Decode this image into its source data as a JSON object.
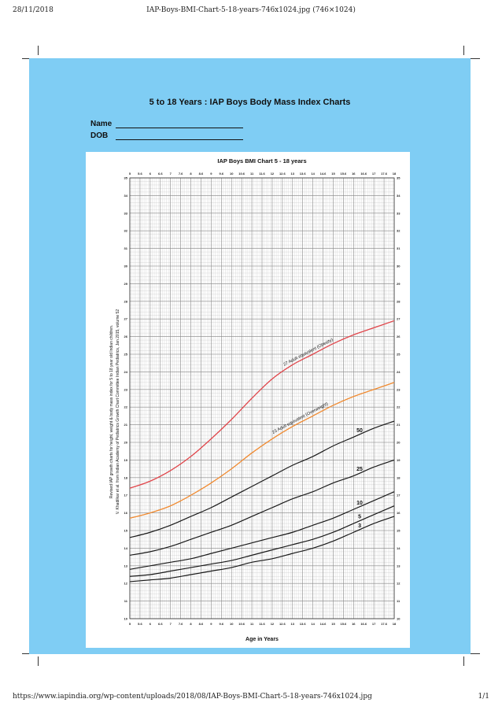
{
  "browser": {
    "date": "28/11/2018",
    "page_title": "IAP-Boys-BMI-Chart-5-18-years-746x1024.jpg (746×1024)",
    "url": "https://www.iapindia.org/wp-content/uploads/2018/08/IAP-Boys-BMI-Chart-5-18-years-746x1024.jpg",
    "page_number": "1/1"
  },
  "sheet": {
    "title": "5 to 18 Years : IAP Boys Body Mass Index Charts",
    "name_label": "Name",
    "dob_label": "DOB"
  },
  "chart_data": {
    "type": "line",
    "title": "IAP Boys BMI Chart 5 - 18 years",
    "xlabel": "Age in Years",
    "ylabel": "",
    "side_note_line1": "Revised IAP growth charts for height, weight & body mass index for 5 to 18 year old Indian children.",
    "side_note_line2": "V. Khadilkar et al. from Indian Academy of Pediatrics Growth Chart Committee Indian Pediatrics, Jan 2015, volume 52",
    "xlim": [
      5,
      18
    ],
    "ylim": [
      10,
      35
    ],
    "x_ticks": [
      "5",
      "5.6",
      "6",
      "6.6",
      "7",
      "7.6",
      "8",
      "8.6",
      "9",
      "9.6",
      "10",
      "10.6",
      "11",
      "11.6",
      "12",
      "12.6",
      "13",
      "13.6",
      "14",
      "14.6",
      "15",
      "15.6",
      "16",
      "16.6",
      "17",
      "17.6",
      "18"
    ],
    "y_ticks": [
      "10",
      "11",
      "12",
      "13",
      "14",
      "15",
      "16",
      "17",
      "18",
      "19",
      "20",
      "21",
      "22",
      "23",
      "24",
      "25",
      "26",
      "27",
      "28",
      "29",
      "30",
      "31",
      "32",
      "33",
      "34",
      "35"
    ],
    "grid": true,
    "x": [
      5,
      6,
      7,
      8,
      9,
      10,
      11,
      12,
      13,
      14,
      15,
      16,
      17,
      18
    ],
    "series": [
      {
        "name": "27 Adult equivalent (Obesity)",
        "color": "#e0454a",
        "values": [
          17.4,
          17.8,
          18.4,
          19.2,
          20.2,
          21.3,
          22.5,
          23.6,
          24.4,
          25.0,
          25.6,
          26.1,
          26.5,
          26.9
        ]
      },
      {
        "name": "23 Adult equivalent (Overweight)",
        "color": "#f08a30",
        "values": [
          15.7,
          16.0,
          16.4,
          17.0,
          17.7,
          18.5,
          19.4,
          20.2,
          20.9,
          21.5,
          22.1,
          22.6,
          23.0,
          23.4
        ]
      },
      {
        "name": "50",
        "color": "#1a1a1a",
        "values": [
          14.6,
          14.9,
          15.3,
          15.8,
          16.3,
          16.9,
          17.5,
          18.1,
          18.7,
          19.2,
          19.8,
          20.3,
          20.8,
          21.2
        ]
      },
      {
        "name": "25",
        "color": "#1a1a1a",
        "values": [
          13.6,
          13.8,
          14.1,
          14.5,
          14.9,
          15.3,
          15.8,
          16.3,
          16.8,
          17.2,
          17.7,
          18.1,
          18.6,
          19.0
        ]
      },
      {
        "name": "10",
        "color": "#1a1a1a",
        "values": [
          12.8,
          13.0,
          13.2,
          13.4,
          13.7,
          14.0,
          14.3,
          14.6,
          14.9,
          15.3,
          15.7,
          16.2,
          16.7,
          17.2
        ]
      },
      {
        "name": "5",
        "color": "#1a1a1a",
        "values": [
          12.4,
          12.5,
          12.7,
          12.9,
          13.1,
          13.3,
          13.6,
          13.9,
          14.2,
          14.5,
          14.9,
          15.4,
          15.9,
          16.4
        ]
      },
      {
        "name": "3",
        "color": "#1a1a1a",
        "values": [
          12.1,
          12.2,
          12.3,
          12.5,
          12.7,
          12.9,
          13.2,
          13.4,
          13.7,
          14.0,
          14.4,
          14.9,
          15.4,
          15.8
        ]
      }
    ]
  }
}
